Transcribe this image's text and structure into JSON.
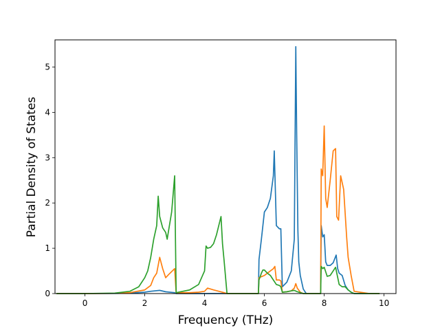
{
  "chart_data": {
    "type": "line",
    "title": "",
    "xlabel": "Frequency (THz)",
    "ylabel": "Partial Density of States",
    "xlim": [
      -1.0,
      10.4
    ],
    "ylim": [
      0,
      5.6
    ],
    "xticks": [
      0,
      2,
      4,
      6,
      8,
      10
    ],
    "yticks": [
      0,
      1,
      2,
      3,
      4,
      5
    ],
    "grid": false,
    "legend": "none",
    "series": [
      {
        "color": "#1f77b4",
        "x": [
          -0.95,
          0,
          1,
          1.5,
          2.0,
          2.2,
          2.5,
          2.7,
          3.0,
          3.05,
          4,
          5,
          5.8,
          5.82,
          5.9,
          6.0,
          6.05,
          6.1,
          6.2,
          6.3,
          6.33,
          6.4,
          6.5,
          6.55,
          6.6,
          6.75,
          6.9,
          7.0,
          7.05,
          7.08,
          7.12,
          7.15,
          7.2,
          7.3,
          7.4,
          7.5,
          7.7,
          7.88,
          7.9,
          7.95,
          8.0,
          8.05,
          8.1,
          8.2,
          8.3,
          8.4,
          8.45,
          8.5,
          8.6,
          8.7,
          8.8,
          8.9,
          9.0,
          9.5,
          9.85
        ],
        "y": [
          0,
          0,
          0.003,
          0.01,
          0.03,
          0.05,
          0.07,
          0.04,
          0.02,
          0.0,
          0.0,
          0.0,
          0.0,
          0.75,
          1.2,
          1.8,
          1.85,
          1.9,
          2.1,
          2.6,
          3.15,
          1.5,
          1.43,
          1.43,
          0.15,
          0.25,
          0.5,
          1.2,
          5.45,
          3.5,
          1.4,
          0.7,
          0.4,
          0.1,
          0.0,
          0.0,
          0.0,
          0.0,
          1.5,
          1.25,
          1.3,
          0.7,
          0.62,
          0.62,
          0.68,
          0.85,
          0.55,
          0.45,
          0.4,
          0.18,
          0.08,
          0.03,
          0.0,
          0.0,
          0.0
        ]
      },
      {
        "color": "#ff7f0e",
        "x": [
          -0.95,
          0,
          1,
          1.5,
          2.0,
          2.2,
          2.3,
          2.4,
          2.5,
          2.6,
          2.7,
          2.8,
          3.0,
          3.05,
          3.5,
          3.8,
          4.0,
          4.1,
          4.3,
          4.6,
          4.75,
          5.8,
          5.82,
          6.0,
          6.1,
          6.2,
          6.3,
          6.35,
          6.4,
          6.5,
          6.55,
          6.6,
          6.75,
          6.9,
          7.0,
          7.05,
          7.1,
          7.2,
          7.3,
          7.4,
          7.88,
          7.9,
          7.95,
          8.0,
          8.05,
          8.1,
          8.2,
          8.3,
          8.38,
          8.42,
          8.48,
          8.55,
          8.65,
          8.75,
          8.8,
          8.9,
          9.0,
          9.5,
          9.85
        ],
        "y": [
          0,
          0,
          0.005,
          0.02,
          0.08,
          0.18,
          0.35,
          0.45,
          0.8,
          0.55,
          0.35,
          0.42,
          0.55,
          0.02,
          0.02,
          0.03,
          0.05,
          0.12,
          0.08,
          0.03,
          0.0,
          0.0,
          0.35,
          0.4,
          0.45,
          0.5,
          0.55,
          0.6,
          0.3,
          0.3,
          0.28,
          0.03,
          0.04,
          0.06,
          0.12,
          0.22,
          0.12,
          0.03,
          0.0,
          0.0,
          0.0,
          2.75,
          2.6,
          3.7,
          2.1,
          1.9,
          2.5,
          3.15,
          3.2,
          1.7,
          1.62,
          2.6,
          2.3,
          1.25,
          0.8,
          0.4,
          0.05,
          0.0,
          0.0
        ]
      },
      {
        "color": "#2ca02c",
        "x": [
          -0.95,
          0,
          1,
          1.5,
          1.8,
          2.0,
          2.1,
          2.2,
          2.3,
          2.4,
          2.45,
          2.5,
          2.6,
          2.7,
          2.75,
          2.8,
          2.9,
          3.0,
          3.05,
          3.5,
          3.8,
          4.0,
          4.05,
          4.1,
          4.2,
          4.3,
          4.4,
          4.55,
          4.6,
          4.65,
          4.75,
          5.8,
          5.82,
          5.9,
          5.95,
          6.0,
          6.1,
          6.2,
          6.3,
          6.4,
          6.5,
          6.55,
          6.6,
          6.75,
          6.9,
          7.0,
          7.1,
          7.2,
          7.3,
          7.88,
          7.9,
          7.95,
          8.0,
          8.1,
          8.2,
          8.3,
          8.38,
          8.5,
          8.6,
          8.7,
          8.8,
          8.9,
          9.0,
          9.5,
          9.85
        ],
        "y": [
          0,
          0,
          0.01,
          0.05,
          0.15,
          0.35,
          0.5,
          0.8,
          1.2,
          1.5,
          2.15,
          1.7,
          1.45,
          1.35,
          1.2,
          1.4,
          1.8,
          2.6,
          0.02,
          0.08,
          0.2,
          0.5,
          1.05,
          1.0,
          1.02,
          1.1,
          1.3,
          1.7,
          1.1,
          0.75,
          0.0,
          0.0,
          0.3,
          0.45,
          0.52,
          0.52,
          0.45,
          0.4,
          0.3,
          0.2,
          0.18,
          0.15,
          0.03,
          0.04,
          0.06,
          0.07,
          0.04,
          0.02,
          0.0,
          0.0,
          0.6,
          0.55,
          0.58,
          0.38,
          0.4,
          0.5,
          0.58,
          0.2,
          0.15,
          0.15,
          0.08,
          0.03,
          0.0,
          0.0,
          0.0
        ]
      }
    ]
  }
}
